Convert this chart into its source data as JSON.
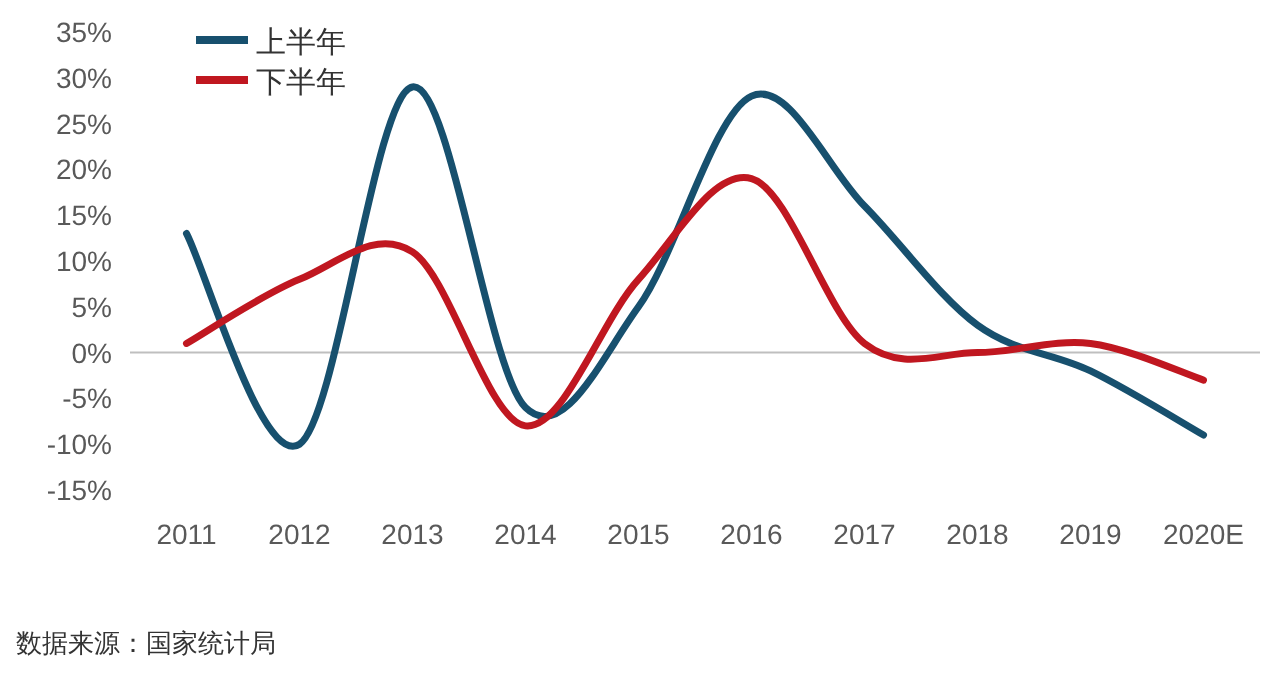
{
  "chart_data": {
    "type": "line",
    "categories": [
      "2011",
      "2012",
      "2013",
      "2014",
      "2015",
      "2016",
      "2017",
      "2018",
      "2019",
      "2020E"
    ],
    "series": [
      {
        "name": "上半年",
        "color": "#17506e",
        "values": [
          13,
          -10,
          29,
          -6,
          5,
          28,
          16,
          3,
          -2,
          -9
        ]
      },
      {
        "name": "下半年",
        "color": "#c01720",
        "values": [
          1,
          8,
          11,
          -8,
          8,
          19,
          1,
          0,
          1,
          -3
        ]
      }
    ],
    "ylim": [
      -15,
      35
    ],
    "yticks": [
      {
        "value": -15,
        "label": "-15%"
      },
      {
        "value": -10,
        "label": "-10%"
      },
      {
        "value": -5,
        "label": "-5%"
      },
      {
        "value": 0,
        "label": "0%"
      },
      {
        "value": 5,
        "label": "5%"
      },
      {
        "value": 10,
        "label": "10%"
      },
      {
        "value": 15,
        "label": "15%"
      },
      {
        "value": 20,
        "label": "20%"
      },
      {
        "value": 25,
        "label": "25%"
      },
      {
        "value": 30,
        "label": "30%"
      },
      {
        "value": 35,
        "label": "35%"
      }
    ],
    "legend": "top left",
    "marker": "none",
    "line_style": "solid",
    "annotations": [
      "数据来源：国家统计局"
    ]
  }
}
